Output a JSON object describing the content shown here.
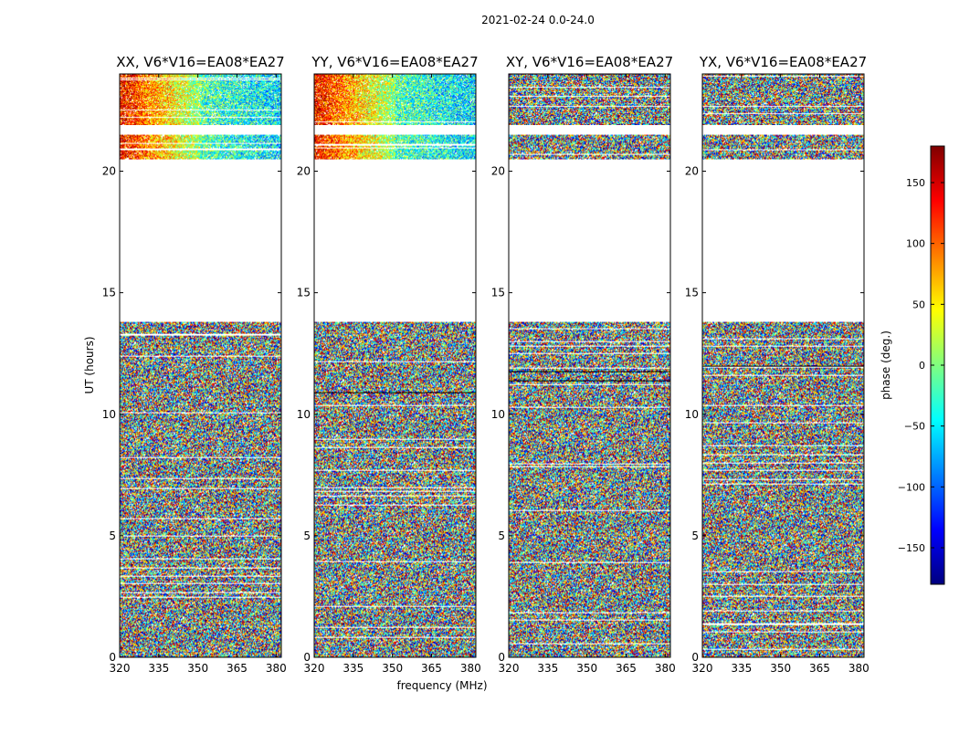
{
  "chart_data": {
    "type": "heatmap",
    "title": "2021-02-24 0.0-24.0",
    "xlabel": "frequency (MHz)",
    "ylabel": "UT (hours)",
    "xlim": [
      320,
      382
    ],
    "ylim": [
      0,
      24
    ],
    "x_ticks": [
      "320",
      "335",
      "350",
      "365",
      "380"
    ],
    "y_ticks": [
      "0",
      "5",
      "10",
      "15",
      "20"
    ],
    "panels": [
      {
        "title": "XX, V6*V16=EA08*EA27",
        "coherent_top": true
      },
      {
        "title": "YY, V6*V16=EA08*EA27",
        "coherent_top": true
      },
      {
        "title": "XY, V6*V16=EA08*EA27",
        "coherent_top": false
      },
      {
        "title": "YX, V6*V16=EA08*EA27",
        "coherent_top": false
      }
    ],
    "data_segments_hours": [
      [
        0,
        13.8
      ],
      [
        20.5,
        21.5
      ],
      [
        21.9,
        24
      ]
    ],
    "flagged_gap_hours": [
      13.8,
      20.5
    ],
    "colorbar": {
      "label": "phase (deg.)",
      "range": [
        -180,
        180
      ],
      "ticks": [
        "150",
        "100",
        "50",
        "0",
        "−50",
        "−100",
        "−150"
      ],
      "colormap": "jet"
    }
  }
}
